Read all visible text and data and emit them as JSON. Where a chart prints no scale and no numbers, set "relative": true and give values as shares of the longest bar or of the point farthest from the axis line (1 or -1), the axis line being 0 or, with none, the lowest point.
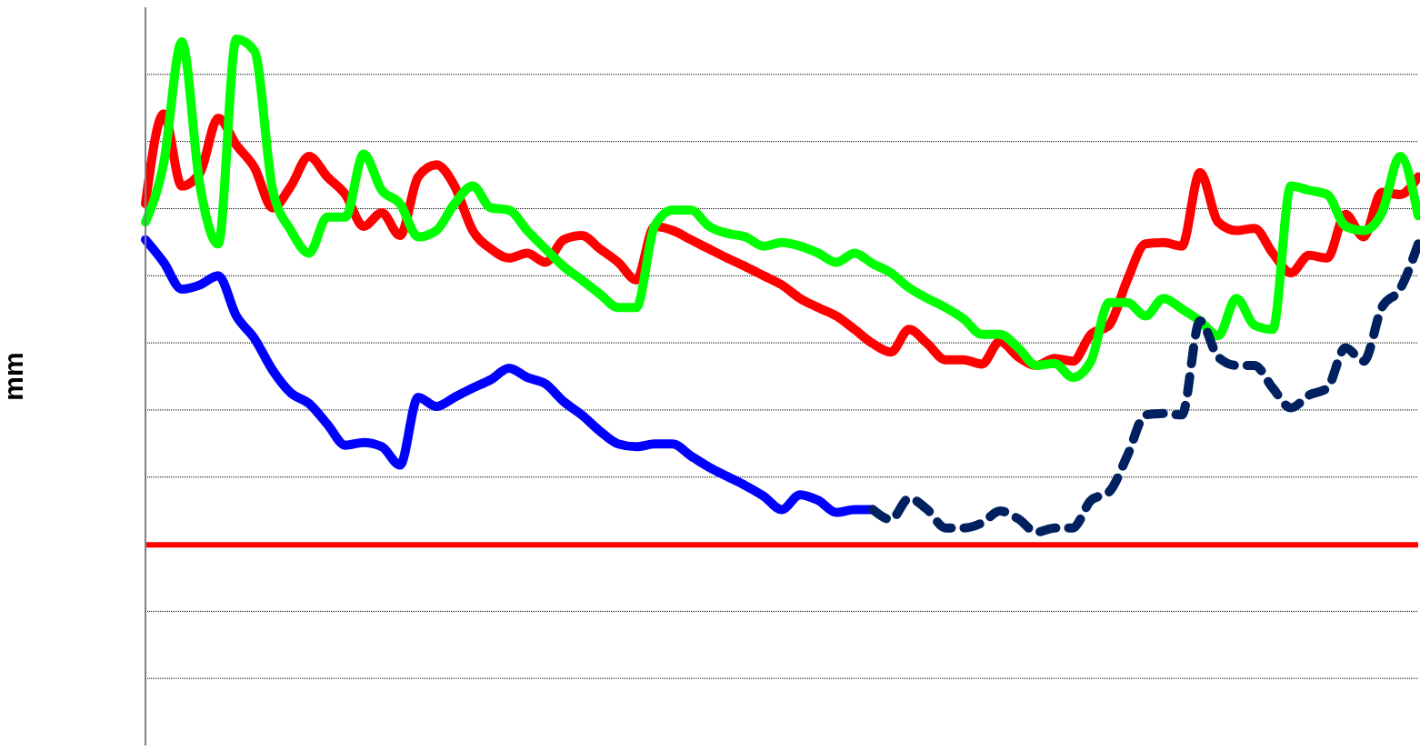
{
  "chart_data": {
    "type": "line",
    "ylabel": "mm",
    "relative": true,
    "grid": "y",
    "marker": "none",
    "categories": [
      null,
      null,
      null,
      null,
      null,
      null,
      null,
      null,
      null,
      null,
      null,
      null,
      null,
      null,
      null,
      null,
      null,
      null,
      null,
      null,
      null,
      null,
      null,
      null,
      null,
      null,
      null,
      null,
      null,
      null,
      null,
      null,
      null,
      null,
      null,
      null,
      null,
      null,
      null,
      null,
      null,
      null,
      null,
      null,
      null,
      null,
      null,
      null,
      null,
      null,
      null,
      null,
      null,
      null,
      null,
      null,
      null,
      null,
      null,
      null,
      null,
      null,
      null,
      null,
      null,
      null,
      null,
      null,
      null,
      null,
      null
    ],
    "ref_lines": [
      {
        "axis": "y",
        "value": 0.284,
        "color": "#ff0000"
      }
    ],
    "series": [
      {
        "color": "#ff0000",
        "line_style": "solid",
        "values": [
          0.767,
          0.894,
          0.792,
          0.811,
          0.888,
          0.85,
          0.818,
          0.761,
          0.792,
          0.834,
          0.805,
          0.78,
          0.735,
          0.754,
          0.722,
          0.805,
          0.822,
          0.792,
          0.729,
          0.703,
          0.69,
          0.697,
          0.684,
          0.716,
          0.722,
          0.703,
          0.684,
          0.659,
          0.735,
          0.729,
          0.716,
          0.703,
          0.69,
          0.678,
          0.665,
          0.652,
          0.633,
          0.62,
          0.608,
          0.589,
          0.569,
          0.557,
          0.589,
          0.569,
          0.546,
          0.546,
          0.54,
          0.572,
          0.55,
          0.538,
          0.548,
          0.544,
          0.582,
          0.595,
          0.659,
          0.71,
          0.712,
          0.707,
          0.811,
          0.741,
          0.729,
          0.732,
          0.697,
          0.669,
          0.694,
          0.69,
          0.752,
          0.72,
          0.783,
          0.78,
          0.805
        ]
      },
      {
        "color": "#00ff00",
        "line_style": "solid",
        "values": [
          0.741,
          0.824,
          0.996,
          0.792,
          0.71,
          1,
          0.983,
          0.786,
          0.729,
          0.697,
          0.748,
          0.748,
          0.837,
          0.786,
          0.767,
          0.72,
          0.729,
          0.767,
          0.792,
          0.761,
          0.758,
          0.729,
          0.703,
          0.678,
          0.659,
          0.639,
          0.62,
          0.62,
          0.735,
          0.758,
          0.758,
          0.735,
          0.725,
          0.72,
          0.707,
          0.712,
          0.707,
          0.697,
          0.684,
          0.697,
          0.682,
          0.669,
          0.648,
          0.633,
          0.62,
          0.604,
          0.582,
          0.582,
          0.563,
          0.538,
          0.541,
          0.521,
          0.544,
          0.627,
          0.627,
          0.608,
          0.633,
          0.618,
          0.601,
          0.58,
          0.633,
          0.595,
          0.589,
          0.792,
          0.786,
          0.78,
          0.735,
          0.729,
          0.754,
          0.834,
          0.75
        ]
      },
      {
        "color": "#0000ff",
        "line_style": "solid",
        "values": [
          0.716,
          0.684,
          0.646,
          0.652,
          0.665,
          0.608,
          0.576,
          0.531,
          0.499,
          0.484,
          0.455,
          0.425,
          0.429,
          0.423,
          0.397,
          0.493,
          0.48,
          0.493,
          0.506,
          0.518,
          0.534,
          0.521,
          0.512,
          0.487,
          0.468,
          0.445,
          0.427,
          0.423,
          0.427,
          0.427,
          0.41,
          0.394,
          0.381,
          0.368,
          0.353,
          0.334,
          0.355,
          0.347,
          0.33,
          0.334,
          0.334,
          null,
          null,
          null,
          null,
          null,
          null,
          null,
          null,
          null,
          null,
          null,
          null,
          null,
          null,
          null,
          null,
          null,
          null,
          null,
          null,
          null,
          null,
          null,
          null,
          null,
          null,
          null,
          null,
          null,
          null
        ]
      },
      {
        "color": "#002060",
        "line_style": "dashed",
        "values": [
          null,
          null,
          null,
          null,
          null,
          null,
          null,
          null,
          null,
          null,
          null,
          null,
          null,
          null,
          null,
          null,
          null,
          null,
          null,
          null,
          null,
          null,
          null,
          null,
          null,
          null,
          null,
          null,
          null,
          null,
          null,
          null,
          null,
          null,
          null,
          null,
          null,
          null,
          null,
          null,
          0.334,
          0.32,
          0.35,
          0.334,
          0.308,
          0.308,
          0.315,
          0.332,
          0.321,
          0.302,
          0.308,
          0.308,
          0.347,
          0.359,
          0.41,
          0.468,
          0.47,
          0.468,
          0.601,
          0.55,
          0.538,
          0.538,
          0.506,
          0.478,
          0.496,
          0.506,
          0.563,
          0.544,
          0.62,
          0.646,
          0.71
        ]
      }
    ]
  }
}
